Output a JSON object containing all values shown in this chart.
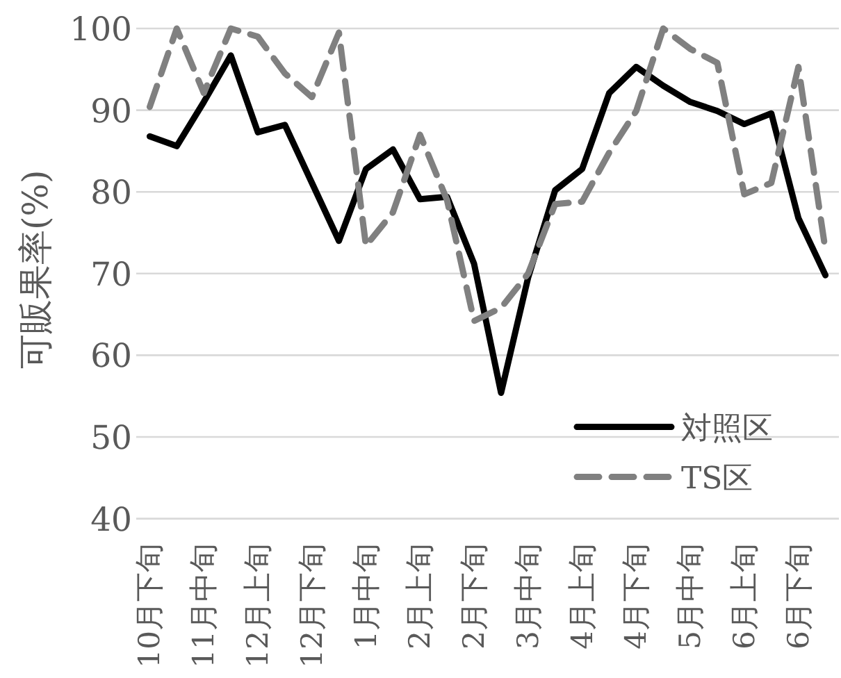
{
  "chart_data": {
    "type": "line",
    "ylabel": "可販果率(%)",
    "categories": [
      "10月下旬",
      null,
      "11月中旬",
      null,
      "12月上旬",
      null,
      "12月下旬",
      null,
      "1月中旬",
      null,
      "2月上旬",
      null,
      "2月下旬",
      null,
      "3月中旬",
      null,
      "4月上旬",
      null,
      "4月下旬",
      null,
      "5月中旬",
      null,
      "6月上旬",
      null,
      "6月下旬",
      null
    ],
    "series": [
      {
        "name": "対照区",
        "color": "#000000",
        "line_style": "solid",
        "values": [
          86.8,
          85.6,
          91,
          96.7,
          87.3,
          88.2,
          81.1,
          74,
          82.8,
          85.2,
          79.1,
          79.4,
          71.2,
          55.4,
          69.5,
          80.2,
          82.8,
          92.1,
          95.3,
          93,
          91,
          89.9,
          88.3,
          89.6,
          76.8,
          69.8
        ]
      },
      {
        "name": "TS区",
        "color": "#808080",
        "line_style": "dashed",
        "values": [
          90.4,
          100,
          92.1,
          100,
          99,
          94.5,
          91.6,
          99.5,
          73.4,
          77.5,
          87,
          79,
          64.2,
          65.8,
          70,
          78.5,
          78.8,
          84.8,
          89.9,
          100,
          97.5,
          95.8,
          79.7,
          81.1,
          95.3,
          72.9
        ]
      }
    ],
    "ylim": [
      40,
      100
    ],
    "yticks": [
      40,
      50,
      60,
      70,
      80,
      90,
      100
    ],
    "grid": "y",
    "legend": "bottom right"
  }
}
